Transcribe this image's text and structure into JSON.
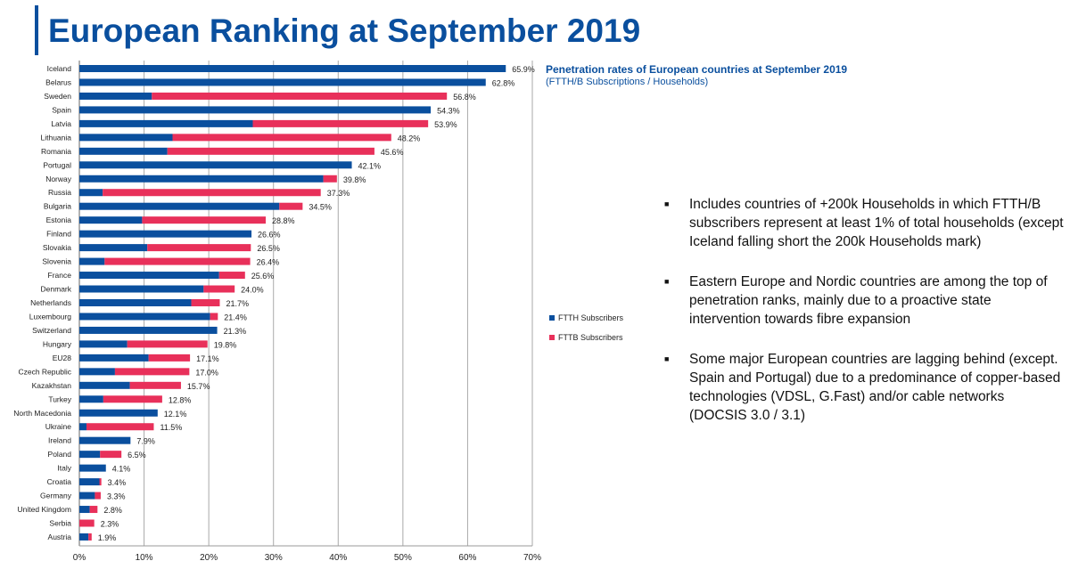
{
  "title": "European Ranking at September 2019",
  "subtitle": "Penetration rates of European countries at September 2019",
  "subtitle_note": "(FTTH/B Subscriptions / Households)",
  "bullets": [
    "Includes countries of +200k Households in which FTTH/B subscribers represent at least 1% of total households (except Iceland falling short the 200k Households mark)",
    "Eastern Europe and Nordic countries are among the top of penetration ranks, mainly due to a proactive state intervention towards fibre expansion",
    "Some major European countries are lagging behind (except. Spain and Portugal) due to a predominance of copper-based technologies (VDSL, G.Fast) and/or cable networks (DOCSIS 3.0 / 3.1)"
  ],
  "chart_data": {
    "type": "bar",
    "orientation": "horizontal",
    "stacked": true,
    "categories": [
      "Iceland",
      "Belarus",
      "Sweden",
      "Spain",
      "Latvia",
      "Lithuania",
      "Romania",
      "Portugal",
      "Norway",
      "Russia",
      "Bulgaria",
      "Estonia",
      "Finland",
      "Slovakia",
      "Slovenia",
      "France",
      "Denmark",
      "Netherlands",
      "Luxembourg",
      "Switzerland",
      "Hungary",
      "EU28",
      "Czech Republic",
      "Kazakhstan",
      "Turkey",
      "North Macedonia",
      "Ukraine",
      "Ireland",
      "Poland",
      "Italy",
      "Croatia",
      "Germany",
      "United Kingdom",
      "Serbia",
      "Austria"
    ],
    "totals": [
      65.9,
      62.8,
      56.8,
      54.3,
      53.9,
      48.2,
      45.6,
      42.1,
      39.8,
      37.3,
      34.5,
      28.8,
      26.6,
      26.5,
      26.4,
      25.6,
      24.0,
      21.7,
      21.4,
      21.3,
      19.8,
      17.1,
      17.0,
      15.7,
      12.8,
      12.1,
      11.5,
      7.9,
      6.5,
      4.1,
      3.4,
      3.3,
      2.8,
      2.3,
      1.9
    ],
    "total_labels": [
      "65.9%",
      "62.8%",
      "56.8%",
      "54.3%",
      "53.9%",
      "48.2%",
      "45.6%",
      "42.1%",
      "39.8%",
      "37.3%",
      "34.5%",
      "28.8%",
      "26.6%",
      "26.5%",
      "26.4%",
      "25.6%",
      "24.0%",
      "21.7%",
      "21.4%",
      "21.3%",
      "19.8%",
      "17.1%",
      "17.0%",
      "15.7%",
      "12.8%",
      "12.1%",
      "11.5%",
      "7.9%",
      "6.5%",
      "4.1%",
      "3.4%",
      "3.3%",
      "2.8%",
      "2.3%",
      "1.9%"
    ],
    "series": [
      {
        "name": "FTTH Subscribers",
        "color": "#0a4f9e",
        "values": [
          65.9,
          62.8,
          11.2,
          54.3,
          26.8,
          14.4,
          13.6,
          42.1,
          37.7,
          3.6,
          30.9,
          9.7,
          26.6,
          10.5,
          3.9,
          21.6,
          19.2,
          17.3,
          20.2,
          21.3,
          7.4,
          10.7,
          5.5,
          7.8,
          3.7,
          12.1,
          1.1,
          7.9,
          3.2,
          4.1,
          3.1,
          2.4,
          1.6,
          0,
          1.4
        ]
      },
      {
        "name": "FTTB Subscribers",
        "color": "#e8305a",
        "values": [
          0,
          0,
          45.6,
          0,
          27.1,
          33.8,
          32.0,
          0,
          2.1,
          33.7,
          3.6,
          19.1,
          0,
          16.0,
          22.5,
          4.0,
          4.8,
          4.4,
          1.2,
          0,
          12.4,
          6.4,
          11.5,
          7.9,
          9.1,
          0,
          10.4,
          0,
          3.3,
          0,
          0.3,
          0.9,
          1.2,
          2.3,
          0.5
        ]
      }
    ],
    "xlim": [
      0,
      70
    ],
    "xticks": [
      0,
      10,
      20,
      30,
      40,
      50,
      60,
      70
    ],
    "xtick_labels": [
      "0%",
      "10%",
      "20%",
      "30%",
      "40%",
      "50%",
      "60%",
      "70%"
    ],
    "grid": true,
    "legend_position": "right"
  }
}
